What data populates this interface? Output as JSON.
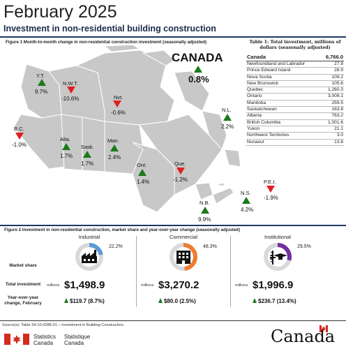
{
  "header": {
    "title": "February 2025",
    "subtitle": "Investment in non-residential building construction"
  },
  "figure1": {
    "caption": "Figure 1  Month-to-month change in non-residential construction investment (seasonally adjusted)",
    "canada": {
      "label": "CANADA",
      "pct": "0.8%",
      "direction": "up"
    },
    "regions": [
      {
        "code": "Y.T.",
        "pct": "9.7%",
        "direction": "up"
      },
      {
        "code": "N.W.T.",
        "pct": "-10.6%",
        "direction": "down"
      },
      {
        "code": "Nvt.",
        "pct": "-0.6%",
        "direction": "down"
      },
      {
        "code": "B.C.",
        "pct": "-1.0%",
        "direction": "down"
      },
      {
        "code": "Alta.",
        "pct": "1.7%",
        "direction": "up"
      },
      {
        "code": "Sask.",
        "pct": "1.7%",
        "direction": "up"
      },
      {
        "code": "Man.",
        "pct": "2.4%",
        "direction": "up"
      },
      {
        "code": "Ont.",
        "pct": "1.4%",
        "direction": "up"
      },
      {
        "code": "Que.",
        "pct": "-1.2%",
        "direction": "down"
      },
      {
        "code": "N.L.",
        "pct": "2.2%",
        "direction": "up"
      },
      {
        "code": "P.E.I.",
        "pct": "-1.9%",
        "direction": "down"
      },
      {
        "code": "N.S.",
        "pct": "4.2%",
        "direction": "up"
      },
      {
        "code": "N.B.",
        "pct": "9.9%",
        "direction": "up"
      }
    ],
    "colors": {
      "up": "#1a7a1a",
      "down": "#e02020",
      "land": "#c8c8c8",
      "water": "#ffffff"
    }
  },
  "table1": {
    "caption": "Table 1: Total investment, millions of dollars (seasonally adjusted)",
    "total": {
      "name": "Canada",
      "value": "6,766.0"
    },
    "rows": [
      {
        "name": "Newfoundland and Labrador",
        "value": "27.8"
      },
      {
        "name": "Prince Edward Island",
        "value": "28.9"
      },
      {
        "name": "Nova Scotia",
        "value": "109.2"
      },
      {
        "name": "New Brunswick",
        "value": "105.6"
      },
      {
        "name": "Quebec",
        "value": "1,260.3"
      },
      {
        "name": "Ontario",
        "value": "3,008.1"
      },
      {
        "name": "Manitoba",
        "value": "259.5"
      },
      {
        "name": "Saskatchewan",
        "value": "163.8"
      },
      {
        "name": "Alberta",
        "value": "763.2"
      },
      {
        "name": "British Columbia",
        "value": "1,001.6"
      },
      {
        "name": "Yukon",
        "value": "21.1"
      },
      {
        "name": "Northwest Territories",
        "value": "3.0"
      },
      {
        "name": "Nunavut",
        "value": "13.8"
      }
    ]
  },
  "figure2": {
    "caption": "Figure 2 Investment in non-residential construction, market share and year-over-year change (seasonally adjusted)",
    "row_labels": {
      "share": "Market share",
      "total": "Total investment",
      "yoy": "Year-over-year change, February"
    },
    "millions_label": "millions",
    "panels": [
      {
        "name": "Industrial",
        "share": "22.2%",
        "share_value": 22.2,
        "color": "#5b9bd5",
        "icon": "factory-icon",
        "amount": "$1,498.9",
        "yoy": "$119.7 (8.7%)"
      },
      {
        "name": "Commercial",
        "share": "48.3%",
        "share_value": 48.3,
        "color": "#ed7d31",
        "icon": "office-building-icon",
        "amount": "$3,270.2",
        "yoy": "$80.0 (2.5%)"
      },
      {
        "name": "Institutional",
        "share": "29.5%",
        "share_value": 29.5,
        "color": "#7030a0",
        "icon": "medical-education-icon",
        "amount": "$1,996.9",
        "yoy": "$236.7 (13.4%)"
      }
    ]
  },
  "footer": {
    "source": "Source(s): Table 34-10-0286-01 —Investment in Building Construction.",
    "agency_en_1": "Statistics",
    "agency_en_2": "Canada",
    "agency_fr_1": "Statistique",
    "agency_fr_2": "Canada",
    "wordmark": "Canada"
  }
}
